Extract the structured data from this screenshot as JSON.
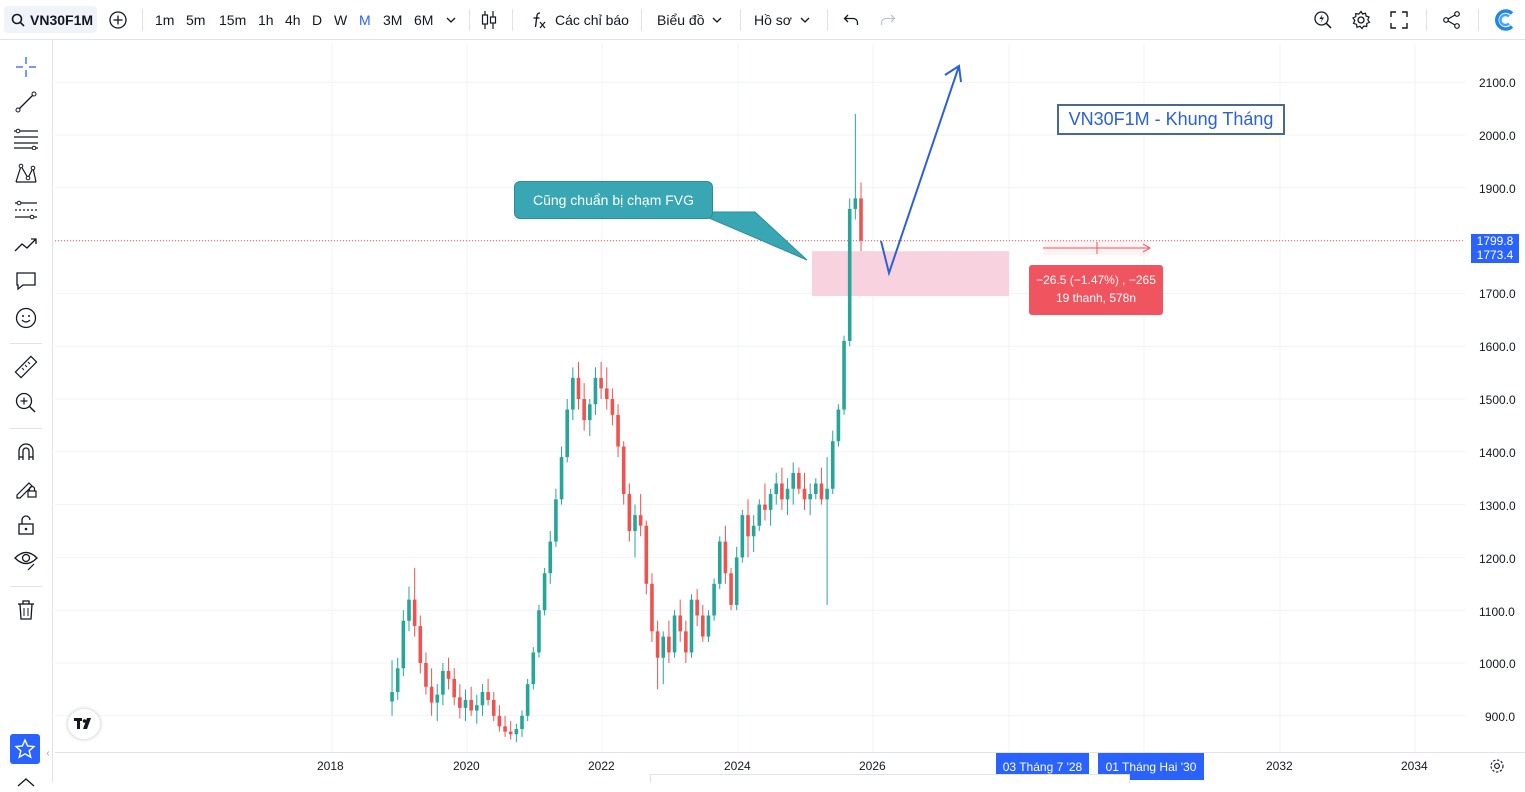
{
  "toolbar": {
    "symbol": "VN30F1M",
    "intervals": [
      "1m",
      "5m",
      "15m",
      "1h",
      "4h",
      "D",
      "W",
      "M",
      "3M",
      "6M"
    ],
    "active_interval": "M",
    "indicators_label": "Các chỉ báo",
    "chart_type_label": "Biểu đồ",
    "profile_label": "Hồ sơ"
  },
  "left_tools": [
    "crosshair-icon",
    "trendline-icon",
    "fib-icon",
    "pattern-icon",
    "forecast-icon",
    "arrow-tool-icon",
    "comment-icon",
    "emoji-icon",
    "ruler-icon",
    "zoom-in-icon",
    "magnet-icon",
    "lock-drawing-icon",
    "unlock-icon",
    "eye-icon",
    "trash-icon",
    "star-icon"
  ],
  "price_axis": {
    "labels": [
      "2100.0",
      "2000.0",
      "1900.0",
      "1700.0",
      "1600.0",
      "1500.0",
      "1400.0",
      "1300.0",
      "1200.0",
      "1100.0",
      "1000.0",
      "900.0"
    ],
    "current_price": "1799.8",
    "second_price": "1773.4",
    "current_color": "#2962ff"
  },
  "time_axis": {
    "labels": [
      "2018",
      "2020",
      "2022",
      "2024",
      "2026",
      "2032",
      "2034"
    ],
    "highlight_1": "03 Tháng 7 '28",
    "highlight_2": "01 Tháng Hai '30",
    "highlight_color": "#2962ff"
  },
  "annotations": {
    "callout": "Cũng chuẩn bị chạm FVG",
    "title_box": "VN30F1M - Khung Tháng",
    "measure_line1": "−26.5 (−1.47%) , −265",
    "measure_line2": "19 thanh, 578n"
  },
  "colors": {
    "up": "#26a69a",
    "down": "#ef5350",
    "fvg": "#f8d3df",
    "callout_bg": "#38a7b3",
    "arrow": "#2962d6",
    "measure_bg": "#f0545e"
  },
  "chart_data": {
    "type": "candlestick",
    "x_axis": "time (monthly)",
    "ylim": [
      860,
      2130
    ],
    "series": [
      {
        "values": [
          [
            927,
            1005,
            900,
            945
          ],
          [
            945,
            1010,
            930,
            990
          ],
          [
            990,
            1100,
            975,
            1080
          ],
          [
            1080,
            1145,
            1060,
            1120
          ],
          [
            1120,
            1180,
            1050,
            1070
          ],
          [
            1070,
            1090,
            980,
            1000
          ],
          [
            1000,
            1020,
            940,
            955
          ],
          [
            955,
            990,
            900,
            925
          ],
          [
            925,
            960,
            890,
            940
          ],
          [
            940,
            1000,
            920,
            985
          ],
          [
            985,
            1010,
            950,
            970
          ],
          [
            970,
            990,
            920,
            935
          ],
          [
            935,
            960,
            895,
            915
          ],
          [
            915,
            950,
            890,
            930
          ],
          [
            930,
            955,
            900,
            910
          ],
          [
            910,
            940,
            885,
            920
          ],
          [
            920,
            960,
            900,
            945
          ],
          [
            945,
            970,
            920,
            930
          ],
          [
            930,
            945,
            890,
            900
          ],
          [
            900,
            920,
            870,
            880
          ],
          [
            880,
            900,
            860,
            870
          ],
          [
            870,
            890,
            855,
            865
          ],
          [
            865,
            885,
            850,
            875
          ],
          [
            875,
            910,
            860,
            900
          ],
          [
            900,
            970,
            890,
            960
          ],
          [
            960,
            1030,
            950,
            1020
          ],
          [
            1020,
            1110,
            1010,
            1100
          ],
          [
            1100,
            1180,
            1090,
            1170
          ],
          [
            1170,
            1250,
            1150,
            1230
          ],
          [
            1230,
            1330,
            1220,
            1310
          ],
          [
            1310,
            1410,
            1300,
            1390
          ],
          [
            1390,
            1500,
            1380,
            1480
          ],
          [
            1480,
            1560,
            1460,
            1540
          ],
          [
            1540,
            1570,
            1480,
            1500
          ],
          [
            1500,
            1530,
            1440,
            1460
          ],
          [
            1460,
            1500,
            1430,
            1490
          ],
          [
            1490,
            1560,
            1470,
            1540
          ],
          [
            1540,
            1570,
            1500,
            1520
          ],
          [
            1520,
            1560,
            1480,
            1500
          ],
          [
            1500,
            1520,
            1450,
            1470
          ],
          [
            1470,
            1490,
            1390,
            1410
          ],
          [
            1410,
            1420,
            1300,
            1320
          ],
          [
            1320,
            1340,
            1230,
            1250
          ],
          [
            1250,
            1300,
            1200,
            1280
          ],
          [
            1280,
            1320,
            1240,
            1260
          ],
          [
            1260,
            1270,
            1130,
            1150
          ],
          [
            1150,
            1170,
            1040,
            1060
          ],
          [
            1060,
            1080,
            950,
            1010
          ],
          [
            1010,
            1060,
            960,
            1050
          ],
          [
            1050,
            1080,
            1000,
            1020
          ],
          [
            1020,
            1100,
            1010,
            1090
          ],
          [
            1090,
            1120,
            1040,
            1060
          ],
          [
            1060,
            1080,
            1000,
            1020
          ],
          [
            1020,
            1130,
            1010,
            1120
          ],
          [
            1120,
            1140,
            1070,
            1090
          ],
          [
            1090,
            1110,
            1040,
            1050
          ],
          [
            1050,
            1100,
            1040,
            1090
          ],
          [
            1090,
            1160,
            1080,
            1150
          ],
          [
            1150,
            1240,
            1140,
            1230
          ],
          [
            1230,
            1260,
            1150,
            1170
          ],
          [
            1170,
            1180,
            1100,
            1110
          ],
          [
            1110,
            1220,
            1100,
            1200
          ],
          [
            1200,
            1290,
            1190,
            1280
          ],
          [
            1280,
            1310,
            1200,
            1240
          ],
          [
            1240,
            1280,
            1210,
            1260
          ],
          [
            1260,
            1310,
            1250,
            1300
          ],
          [
            1300,
            1340,
            1270,
            1290
          ],
          [
            1290,
            1330,
            1260,
            1320
          ],
          [
            1320,
            1360,
            1300,
            1340
          ],
          [
            1340,
            1370,
            1290,
            1310
          ],
          [
            1310,
            1350,
            1280,
            1330
          ],
          [
            1330,
            1380,
            1300,
            1360
          ],
          [
            1360,
            1370,
            1320,
            1330
          ],
          [
            1330,
            1360,
            1290,
            1310
          ],
          [
            1310,
            1340,
            1280,
            1320
          ],
          [
            1320,
            1350,
            1310,
            1340
          ],
          [
            1340,
            1370,
            1300,
            1310
          ],
          [
            1310,
            1390,
            1110,
            1330
          ],
          [
            1330,
            1440,
            1320,
            1420
          ],
          [
            1420,
            1490,
            1410,
            1480
          ],
          [
            1480,
            1620,
            1470,
            1610
          ],
          [
            1610,
            1880,
            1600,
            1860
          ],
          [
            1860,
            2040,
            1840,
            1880
          ],
          [
            1880,
            1910,
            1780,
            1800
          ]
        ]
      }
    ],
    "annotations": {
      "fvg_zone": [
        1695,
        1780
      ],
      "current_price": 1799.8
    }
  }
}
